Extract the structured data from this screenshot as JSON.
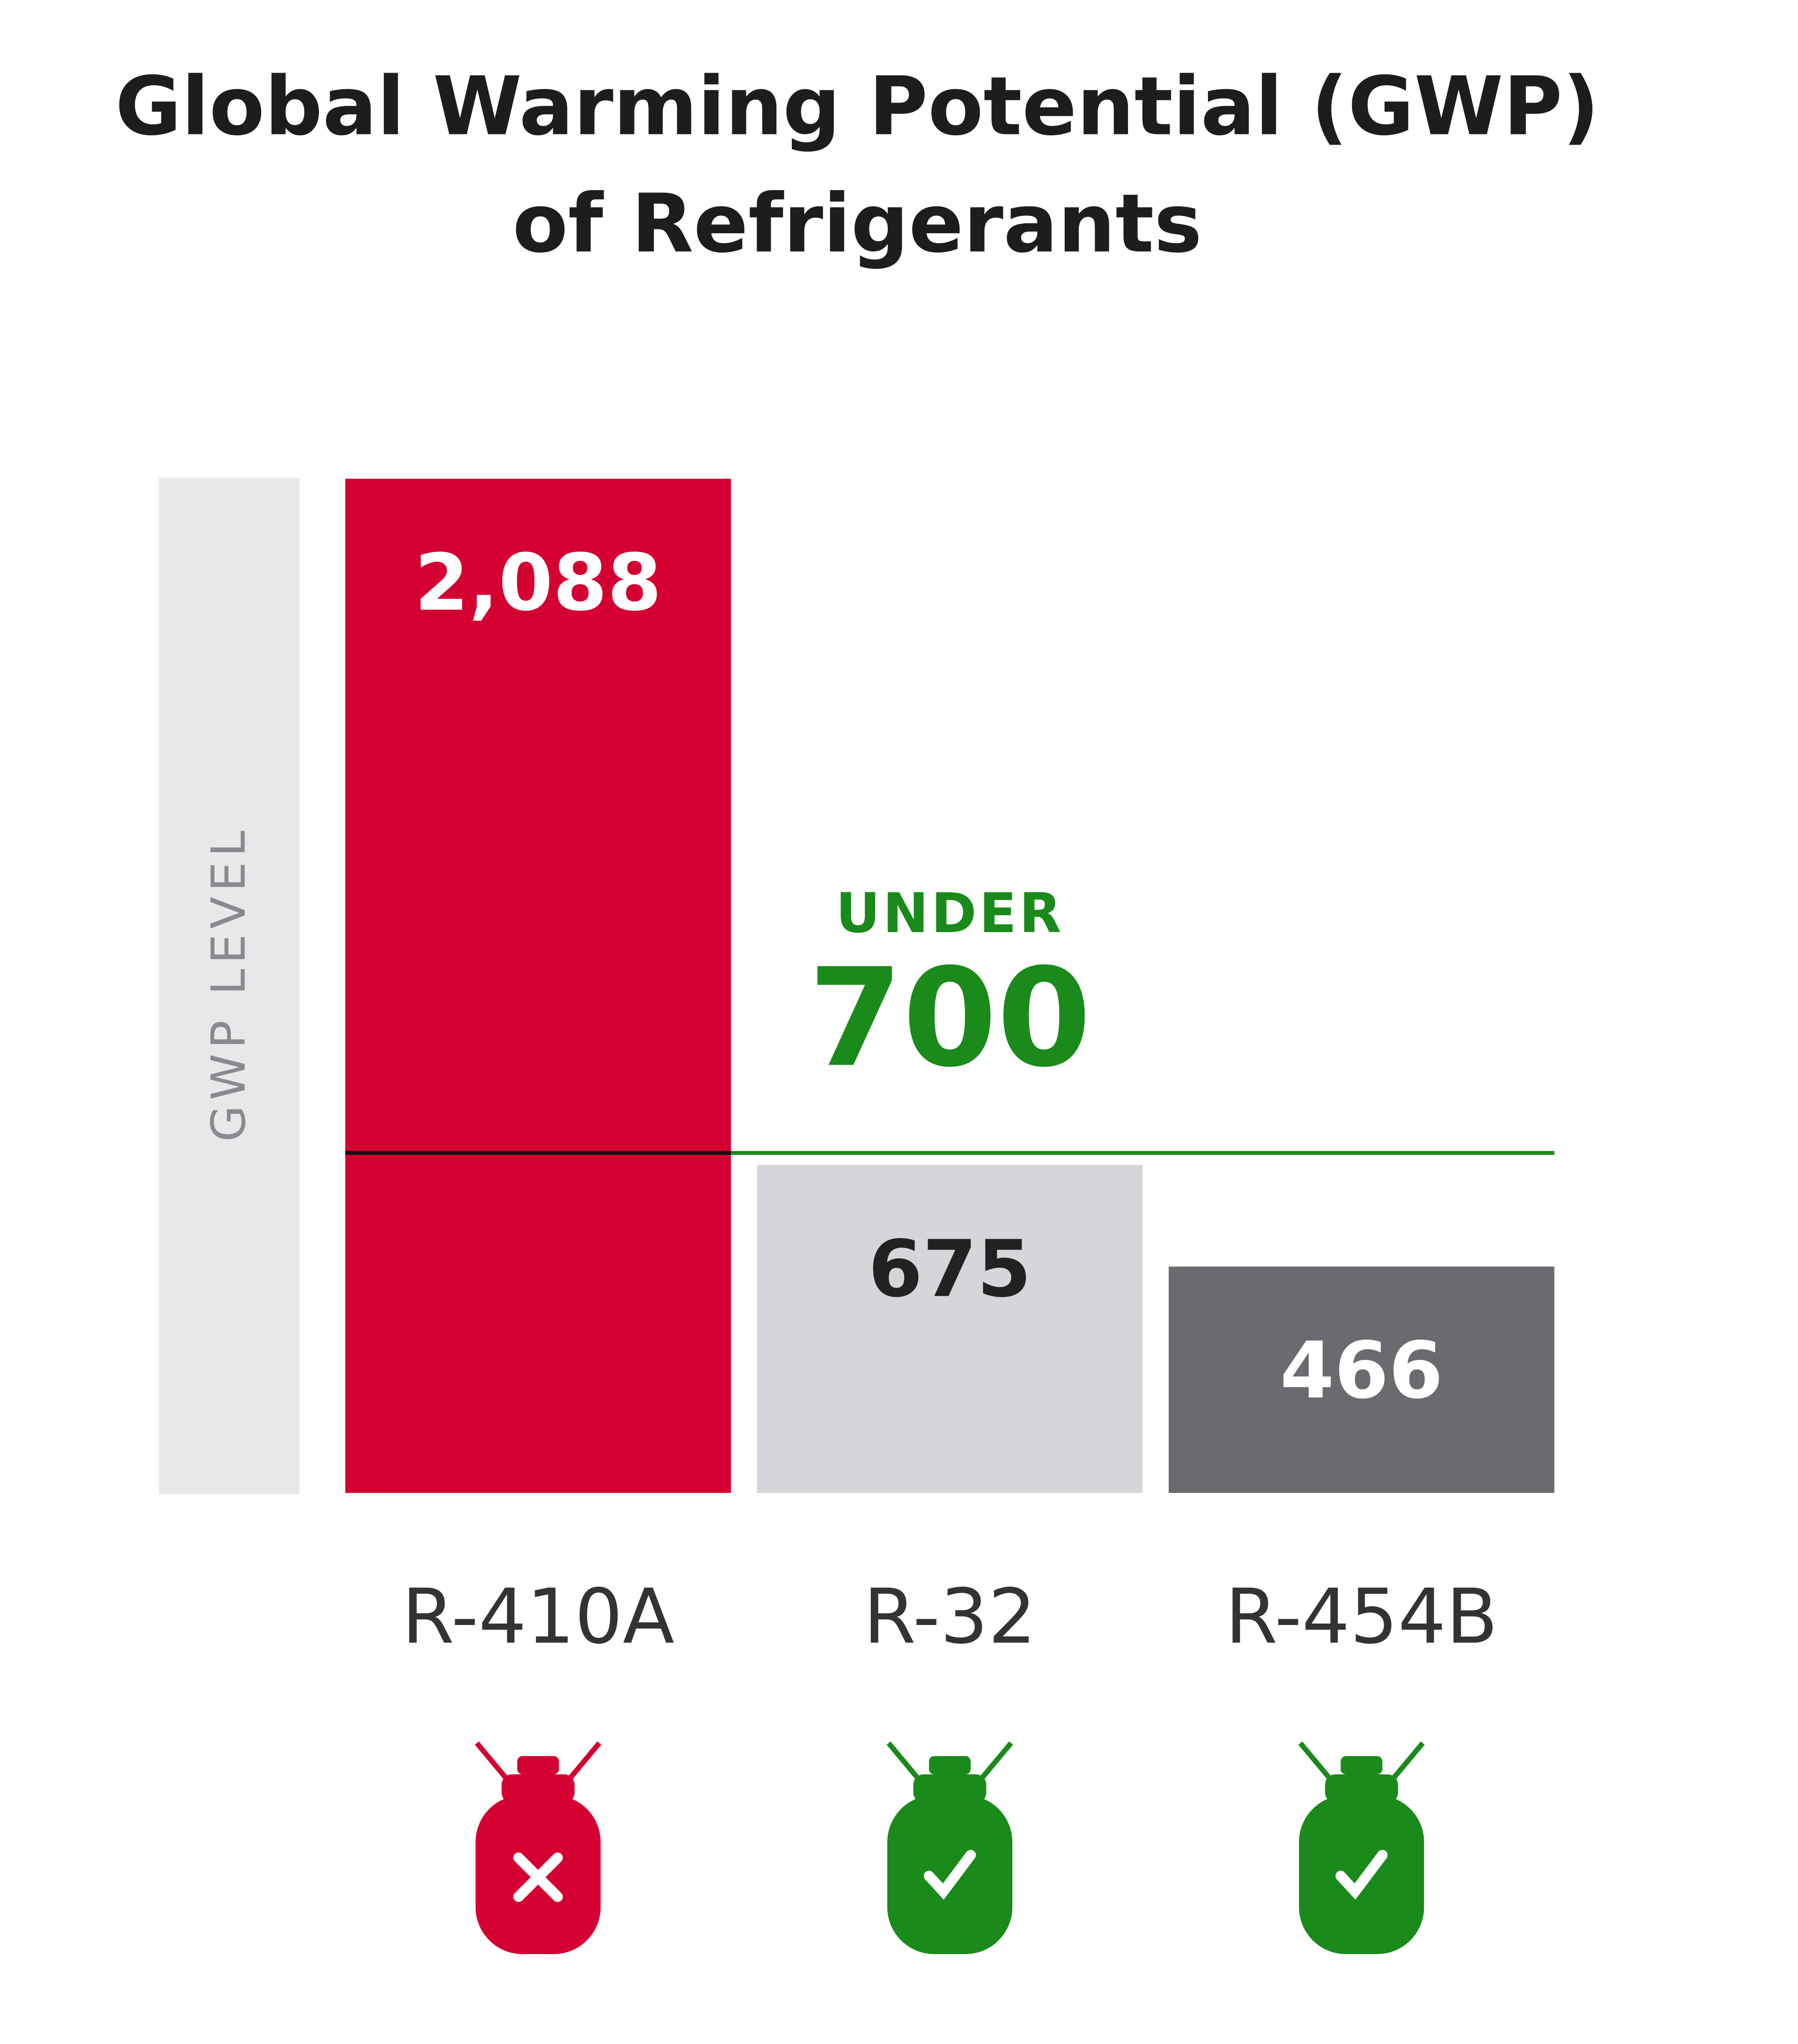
{
  "chart_data": {
    "type": "bar",
    "title": [
      "Global Warming Potential (GWP)",
      "of Refrigerants"
    ],
    "y_label": "GWP LEVEL",
    "categories": [
      "R-410A",
      "R-32",
      "R-454B"
    ],
    "values": [
      2088,
      675,
      466
    ],
    "value_labels": [
      "2,088",
      "675",
      "466"
    ],
    "colors": [
      "#d50032",
      "#d6d6da",
      "#6a6b6e"
    ],
    "ylim": [
      0,
      2100
    ],
    "threshold": {
      "value": 700,
      "label": "UNDER",
      "color": "#1a8a1a"
    }
  }
}
